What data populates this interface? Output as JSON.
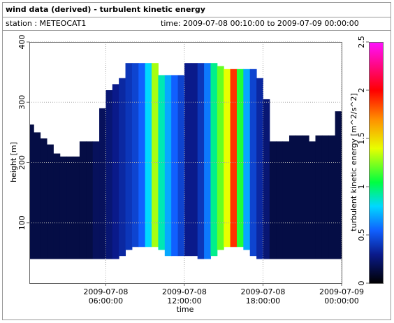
{
  "chart_data": {
    "type": "heatmap",
    "title": "wind data (derived) - turbulent kinetic energy",
    "station": "station : METEOCAT1",
    "time_range": "time: 2009-07-08 00:10:00 to 2009-07-09 00:00:00",
    "x_label": "time",
    "y_label": "height [m]",
    "colorbar_label": "turbulent kinetic energy [m^2/s^2]",
    "xlim": [
      0.1667,
      24
    ],
    "xticks": [
      {
        "value": 6,
        "label": [
          "2009-07-08",
          "06:00:00"
        ]
      },
      {
        "value": 12,
        "label": [
          "2009-07-08",
          "12:00:00"
        ]
      },
      {
        "value": 18,
        "label": [
          "2009-07-08",
          "18:00:00"
        ]
      },
      {
        "value": 24,
        "label": [
          "2009-07-09",
          "00:00:00"
        ]
      }
    ],
    "ylim": [
      0,
      400
    ],
    "yticks": [
      100,
      200,
      300,
      400
    ],
    "clim": [
      0,
      2.5
    ],
    "cticks": [
      0,
      0.5,
      1,
      1.5,
      2,
      2.5
    ],
    "colormap": [
      {
        "value": 0,
        "color": "#000000"
      },
      {
        "value": 0.3,
        "color": "#0a1a8a"
      },
      {
        "value": 0.55,
        "color": "#1060ff"
      },
      {
        "value": 0.8,
        "color": "#00d8ff"
      },
      {
        "value": 1.05,
        "color": "#00ff40"
      },
      {
        "value": 1.4,
        "color": "#e8ff00"
      },
      {
        "value": 1.7,
        "color": "#ff9000"
      },
      {
        "value": 2.0,
        "color": "#ff0000"
      },
      {
        "value": 2.5,
        "color": "#ff10ff"
      }
    ],
    "grid": true,
    "x": [
      0.25,
      0.75,
      1.25,
      1.75,
      2.25,
      2.75,
      3.25,
      3.75,
      4.25,
      4.75,
      5.25,
      5.75,
      6.25,
      6.75,
      7.25,
      7.75,
      8.25,
      8.75,
      9.25,
      9.75,
      10.25,
      10.75,
      11.25,
      11.75,
      12.25,
      12.75,
      13.25,
      13.75,
      14.25,
      14.75,
      15.25,
      15.75,
      16.25,
      16.75,
      17.25,
      17.75,
      18.25,
      18.75,
      19.25,
      19.75,
      20.25,
      20.75,
      21.25,
      21.75,
      22.25,
      22.75,
      23.25,
      23.75
    ],
    "bottom": [
      40,
      40,
      40,
      40,
      40,
      40,
      40,
      40,
      40,
      40,
      40,
      40,
      40,
      40,
      45,
      55,
      60,
      60,
      60,
      60,
      55,
      45,
      45,
      45,
      45,
      45,
      40,
      40,
      45,
      55,
      60,
      60,
      60,
      55,
      45,
      40,
      40,
      40,
      40,
      40,
      40,
      40,
      40,
      40,
      40,
      40,
      40,
      40
    ],
    "top": [
      263,
      250,
      240,
      230,
      215,
      210,
      210,
      210,
      235,
      235,
      235,
      290,
      320,
      330,
      340,
      365,
      365,
      365,
      365,
      365,
      345,
      345,
      345,
      345,
      365,
      365,
      365,
      365,
      365,
      360,
      355,
      355,
      355,
      355,
      355,
      340,
      305,
      235,
      235,
      235,
      245,
      245,
      245,
      235,
      245,
      245,
      245,
      285
    ],
    "values": [
      0.15,
      0.15,
      0.15,
      0.15,
      0.15,
      0.15,
      0.15,
      0.15,
      0.15,
      0.15,
      0.2,
      0.2,
      0.25,
      0.3,
      0.35,
      0.4,
      0.45,
      0.55,
      0.8,
      1.3,
      0.9,
      0.7,
      0.55,
      0.45,
      0.3,
      0.3,
      0.4,
      0.6,
      0.95,
      1.2,
      1.4,
      1.9,
      1.1,
      0.7,
      0.45,
      0.35,
      0.25,
      0.15,
      0.15,
      0.15,
      0.15,
      0.15,
      0.15,
      0.15,
      0.15,
      0.15,
      0.15,
      0.15
    ]
  }
}
